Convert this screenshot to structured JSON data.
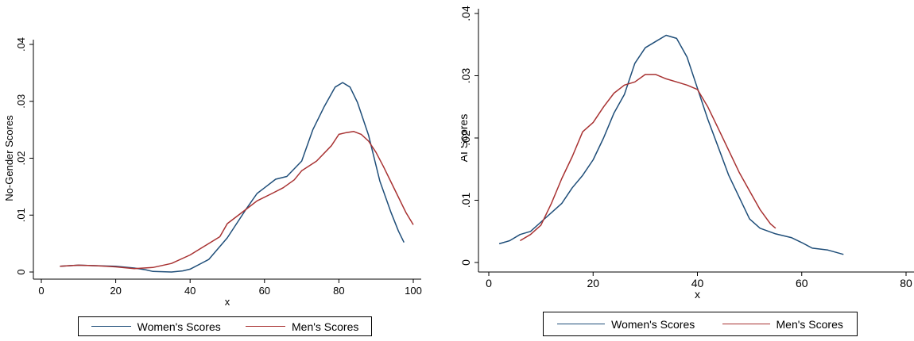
{
  "chart_data": [
    {
      "type": "line",
      "title": "",
      "xlabel": "x",
      "ylabel": "No-Gender Scores",
      "xlim": [
        0,
        100
      ],
      "ylim": [
        0,
        0.04
      ],
      "xticks": [
        0,
        20,
        40,
        60,
        80,
        100
      ],
      "xtick_labels": [
        "0",
        "20",
        "40",
        "60",
        "80",
        "100"
      ],
      "yticks": [
        0,
        0.01,
        0.02,
        0.03,
        0.04
      ],
      "ytick_labels": [
        "0",
        ".01",
        ".02",
        ".03",
        ".04"
      ],
      "grid": false,
      "legend": "bottom",
      "series": [
        {
          "name": "Women's Scores",
          "color": "#1f4e79",
          "points": [
            [
              5,
              0.001
            ],
            [
              10,
              0.0012
            ],
            [
              15,
              0.0011
            ],
            [
              20,
              0.001
            ],
            [
              25,
              0.0007
            ],
            [
              28,
              0.0004
            ],
            [
              30,
              0.0001
            ],
            [
              35,
              0.0
            ],
            [
              38,
              0.0002
            ],
            [
              40,
              0.0005
            ],
            [
              45,
              0.0022
            ],
            [
              50,
              0.006
            ],
            [
              55,
              0.011
            ],
            [
              58,
              0.0138
            ],
            [
              60,
              0.0148
            ],
            [
              63,
              0.0163
            ],
            [
              66,
              0.0168
            ],
            [
              70,
              0.0195
            ],
            [
              73,
              0.025
            ],
            [
              76,
              0.029
            ],
            [
              79,
              0.0325
            ],
            [
              81,
              0.0333
            ],
            [
              83,
              0.0325
            ],
            [
              85,
              0.0298
            ],
            [
              88,
              0.024
            ],
            [
              91,
              0.016
            ],
            [
              94,
              0.0105
            ],
            [
              96,
              0.0072
            ],
            [
              97.5,
              0.0052
            ]
          ]
        },
        {
          "name": "Men's Scores",
          "color": "#a83232",
          "points": [
            [
              5,
              0.001
            ],
            [
              10,
              0.0012
            ],
            [
              15,
              0.0011
            ],
            [
              20,
              0.0009
            ],
            [
              25,
              0.0006
            ],
            [
              30,
              0.0008
            ],
            [
              35,
              0.0015
            ],
            [
              40,
              0.003
            ],
            [
              45,
              0.005
            ],
            [
              48,
              0.0062
            ],
            [
              50,
              0.0085
            ],
            [
              55,
              0.011
            ],
            [
              58,
              0.0125
            ],
            [
              62,
              0.0138
            ],
            [
              65,
              0.0148
            ],
            [
              68,
              0.0162
            ],
            [
              70,
              0.0178
            ],
            [
              74,
              0.0195
            ],
            [
              78,
              0.0222
            ],
            [
              80,
              0.0242
            ],
            [
              82,
              0.0245
            ],
            [
              84,
              0.0247
            ],
            [
              86,
              0.0242
            ],
            [
              88,
              0.023
            ],
            [
              90,
              0.021
            ],
            [
              92,
              0.0185
            ],
            [
              95,
              0.0145
            ],
            [
              98,
              0.0105
            ],
            [
              100,
              0.0083
            ]
          ]
        }
      ]
    },
    {
      "type": "line",
      "title": "",
      "xlabel": "x",
      "ylabel": "AI Scores",
      "xlim": [
        0,
        80
      ],
      "ylim": [
        0,
        0.04
      ],
      "xticks": [
        0,
        20,
        40,
        60,
        80
      ],
      "xtick_labels": [
        "0",
        "20",
        "40",
        "60",
        "80"
      ],
      "yticks": [
        0,
        0.01,
        0.02,
        0.03,
        0.04
      ],
      "ytick_labels": [
        "0",
        ".01",
        ".02",
        ".03",
        ".04"
      ],
      "grid": false,
      "legend": "bottom",
      "series": [
        {
          "name": "Women's Scores",
          "color": "#1f4e79",
          "points": [
            [
              2,
              0.003
            ],
            [
              4,
              0.0035
            ],
            [
              6,
              0.0045
            ],
            [
              8,
              0.005
            ],
            [
              10,
              0.0065
            ],
            [
              12,
              0.008
            ],
            [
              14,
              0.0095
            ],
            [
              16,
              0.012
            ],
            [
              18,
              0.014
            ],
            [
              20,
              0.0165
            ],
            [
              22,
              0.02
            ],
            [
              24,
              0.024
            ],
            [
              26,
              0.027
            ],
            [
              28,
              0.032
            ],
            [
              30,
              0.0345
            ],
            [
              32,
              0.0355
            ],
            [
              34,
              0.0365
            ],
            [
              36,
              0.036
            ],
            [
              38,
              0.033
            ],
            [
              40,
              0.028
            ],
            [
              42,
              0.023
            ],
            [
              44,
              0.0185
            ],
            [
              46,
              0.014
            ],
            [
              48,
              0.0105
            ],
            [
              50,
              0.007
            ],
            [
              52,
              0.0055
            ],
            [
              55,
              0.0046
            ],
            [
              58,
              0.004
            ],
            [
              60,
              0.0032
            ],
            [
              62,
              0.0023
            ],
            [
              65,
              0.002
            ],
            [
              68,
              0.0013
            ]
          ]
        },
        {
          "name": "Men's Scores",
          "color": "#a83232",
          "points": [
            [
              6,
              0.0035
            ],
            [
              8,
              0.0045
            ],
            [
              10,
              0.006
            ],
            [
              12,
              0.0095
            ],
            [
              14,
              0.0135
            ],
            [
              16,
              0.017
            ],
            [
              18,
              0.021
            ],
            [
              20,
              0.0225
            ],
            [
              22,
              0.025
            ],
            [
              24,
              0.0272
            ],
            [
              26,
              0.0285
            ],
            [
              28,
              0.029
            ],
            [
              30,
              0.0302
            ],
            [
              32,
              0.0302
            ],
            [
              34,
              0.0295
            ],
            [
              36,
              0.029
            ],
            [
              38,
              0.0285
            ],
            [
              40,
              0.0278
            ],
            [
              42,
              0.025
            ],
            [
              44,
              0.0215
            ],
            [
              46,
              0.018
            ],
            [
              48,
              0.0145
            ],
            [
              50,
              0.0115
            ],
            [
              52,
              0.0085
            ],
            [
              54,
              0.0062
            ],
            [
              55,
              0.0055
            ]
          ]
        }
      ]
    }
  ]
}
